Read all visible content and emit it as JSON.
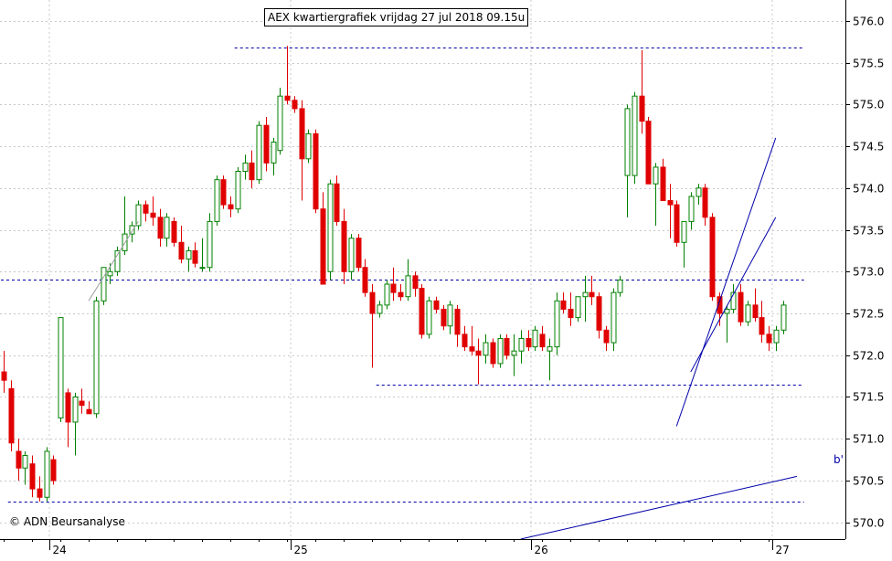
{
  "chart_data": {
    "type": "candlestick",
    "title": "AEX kwartiergrafiek vrijdag 27 jul 2018 09.15u",
    "copyright": "© ADN Beursanalyse",
    "y_axis": {
      "position": "right",
      "ylim": [
        569.8,
        576.25
      ],
      "ticks": [
        "570.0",
        "570.5",
        "571.0",
        "571.5",
        "572.0",
        "572.5",
        "573.0",
        "573.5",
        "574.0",
        "574.5",
        "575.0",
        "575.5",
        "576.0"
      ]
    },
    "x_axis": {
      "day_labels": [
        "24",
        "25",
        "26",
        "27"
      ],
      "bar_count": 111,
      "day_start_index": [
        7,
        41,
        75,
        109
      ]
    },
    "grid": true,
    "colors": {
      "up": "#008000",
      "down": "#e00000",
      "trend": "#0000aa",
      "grid": "#c8c8c8",
      "level": "#0000aa"
    },
    "horizontal_levels": [
      {
        "value": 575.68,
        "from_index": 33,
        "to_index": 113
      },
      {
        "value": 572.9,
        "from_index": 0,
        "to_index": 113
      },
      {
        "value": 571.65,
        "from_index": 53,
        "to_index": 113
      },
      {
        "value": 570.25,
        "from_index": 1,
        "to_index": 113
      }
    ],
    "trend_lines": [
      {
        "label": "b'",
        "from": [
          73,
          569.8
        ],
        "to": [
          112,
          570.55
        ]
      },
      {
        "label": "",
        "from": [
          95,
          571.15
        ],
        "to": [
          109,
          574.6
        ]
      },
      {
        "label": "",
        "from": [
          97,
          571.8
        ],
        "to": [
          109,
          573.65
        ]
      },
      {
        "label": "",
        "from": [
          12,
          572.65
        ],
        "to": [
          19,
          573.6
        ]
      }
    ],
    "ohlc": [
      [
        571.8,
        572.05,
        571.55,
        571.7
      ],
      [
        571.6,
        571.7,
        570.85,
        570.95
      ],
      [
        570.85,
        571.0,
        570.5,
        570.65
      ],
      [
        570.65,
        570.85,
        570.45,
        570.8
      ],
      [
        570.7,
        570.8,
        570.3,
        570.4
      ],
      [
        570.4,
        570.55,
        570.25,
        570.3
      ],
      [
        570.3,
        570.9,
        570.25,
        570.85
      ],
      [
        570.75,
        570.8,
        570.45,
        570.5
      ],
      [
        571.25,
        572.45,
        571.2,
        572.45
      ],
      [
        571.55,
        571.6,
        570.9,
        571.2
      ],
      [
        571.2,
        571.55,
        570.8,
        571.5
      ],
      [
        571.45,
        571.6,
        571.3,
        571.4
      ],
      [
        571.35,
        571.45,
        571.3,
        571.3
      ],
      [
        571.3,
        572.7,
        571.25,
        572.65
      ],
      [
        572.65,
        573.05,
        572.6,
        573.05
      ],
      [
        572.95,
        573.1,
        572.85,
        573.0
      ],
      [
        573.0,
        573.3,
        572.95,
        573.25
      ],
      [
        573.25,
        573.9,
        573.2,
        573.45
      ],
      [
        573.45,
        573.6,
        573.35,
        573.55
      ],
      [
        573.55,
        573.85,
        573.5,
        573.8
      ],
      [
        573.8,
        573.85,
        573.6,
        573.7
      ],
      [
        573.7,
        573.9,
        573.55,
        573.65
      ],
      [
        573.65,
        573.75,
        573.3,
        573.4
      ],
      [
        573.4,
        573.7,
        573.3,
        573.65
      ],
      [
        573.6,
        573.65,
        573.3,
        573.35
      ],
      [
        573.35,
        573.55,
        573.1,
        573.15
      ],
      [
        573.15,
        573.3,
        573.0,
        573.25
      ],
      [
        573.25,
        573.35,
        573.05,
        573.1
      ],
      [
        573.05,
        573.4,
        573.0,
        573.05
      ],
      [
        573.05,
        573.7,
        573.0,
        573.6
      ],
      [
        573.6,
        574.15,
        573.55,
        574.1
      ],
      [
        574.1,
        574.15,
        573.75,
        573.8
      ],
      [
        573.8,
        573.9,
        573.65,
        573.75
      ],
      [
        573.75,
        574.25,
        573.7,
        574.2
      ],
      [
        574.2,
        574.4,
        574.1,
        574.3
      ],
      [
        574.3,
        574.45,
        574.0,
        574.1
      ],
      [
        574.1,
        574.8,
        574.05,
        574.75
      ],
      [
        574.75,
        574.85,
        574.2,
        574.3
      ],
      [
        574.3,
        574.6,
        574.15,
        574.55
      ],
      [
        574.45,
        575.2,
        574.4,
        575.1
      ],
      [
        575.1,
        575.7,
        575.0,
        575.05
      ],
      [
        575.05,
        575.1,
        574.9,
        574.95
      ],
      [
        574.95,
        575.05,
        573.85,
        574.35
      ],
      [
        574.35,
        574.7,
        574.3,
        574.65
      ],
      [
        574.65,
        574.7,
        573.7,
        573.75
      ],
      [
        573.75,
        573.95,
        572.85,
        572.85
      ],
      [
        573.0,
        574.1,
        572.9,
        574.05
      ],
      [
        574.05,
        574.15,
        573.55,
        573.6
      ],
      [
        573.6,
        573.75,
        572.85,
        573.0
      ],
      [
        573.0,
        573.45,
        572.9,
        573.4
      ],
      [
        573.4,
        573.45,
        573.0,
        573.05
      ],
      [
        573.05,
        573.15,
        572.7,
        572.75
      ],
      [
        572.75,
        572.85,
        571.85,
        572.5
      ],
      [
        572.5,
        572.65,
        572.45,
        572.6
      ],
      [
        572.6,
        572.9,
        572.55,
        572.85
      ],
      [
        572.85,
        573.05,
        572.65,
        572.75
      ],
      [
        572.75,
        572.85,
        572.65,
        572.7
      ],
      [
        572.7,
        573.15,
        572.65,
        572.95
      ],
      [
        572.95,
        573.0,
        572.7,
        572.8
      ],
      [
        572.8,
        572.85,
        572.2,
        572.25
      ],
      [
        572.25,
        572.7,
        572.2,
        572.65
      ],
      [
        572.65,
        572.7,
        572.5,
        572.55
      ],
      [
        572.55,
        572.6,
        572.3,
        572.35
      ],
      [
        572.35,
        572.65,
        572.25,
        572.6
      ],
      [
        572.55,
        572.6,
        572.1,
        572.25
      ],
      [
        572.25,
        572.35,
        572.05,
        572.1
      ],
      [
        572.1,
        572.35,
        572.0,
        572.05
      ],
      [
        572.05,
        572.2,
        571.65,
        572.0
      ],
      [
        572.0,
        572.25,
        571.9,
        572.15
      ],
      [
        572.15,
        572.2,
        571.85,
        571.9
      ],
      [
        571.9,
        572.25,
        571.85,
        572.2
      ],
      [
        572.2,
        572.25,
        571.95,
        572.0
      ],
      [
        572.0,
        572.25,
        571.75,
        572.05
      ],
      [
        572.05,
        572.3,
        571.9,
        572.2
      ],
      [
        572.2,
        572.3,
        572.05,
        572.1
      ],
      [
        572.1,
        572.35,
        572.05,
        572.3
      ],
      [
        572.25,
        572.35,
        572.05,
        572.1
      ],
      [
        572.05,
        572.2,
        571.7,
        572.1
      ],
      [
        572.1,
        572.75,
        572.0,
        572.65
      ],
      [
        572.65,
        572.75,
        572.5,
        572.55
      ],
      [
        572.55,
        572.75,
        572.35,
        572.45
      ],
      [
        572.45,
        572.7,
        572.4,
        572.7
      ],
      [
        572.7,
        572.95,
        572.4,
        572.75
      ],
      [
        572.75,
        572.95,
        572.6,
        572.7
      ],
      [
        572.7,
        572.75,
        572.2,
        572.3
      ],
      [
        572.3,
        572.35,
        572.05,
        572.15
      ],
      [
        572.15,
        572.8,
        572.05,
        572.75
      ],
      [
        572.75,
        572.95,
        572.7,
        572.9
      ],
      [
        574.15,
        575.0,
        573.65,
        574.95
      ],
      [
        574.15,
        575.15,
        574.05,
        575.1
      ],
      [
        575.1,
        575.65,
        574.65,
        574.8
      ],
      [
        574.8,
        574.85,
        574.05,
        574.05
      ],
      [
        574.05,
        574.3,
        573.55,
        574.25
      ],
      [
        574.25,
        574.35,
        573.85,
        573.85
      ],
      [
        573.85,
        574.05,
        573.4,
        573.8
      ],
      [
        573.8,
        573.85,
        573.3,
        573.35
      ],
      [
        573.35,
        573.6,
        573.05,
        573.6
      ],
      [
        573.6,
        573.95,
        573.5,
        573.9
      ],
      [
        573.9,
        574.05,
        573.8,
        574.0
      ],
      [
        574.0,
        574.05,
        573.55,
        573.65
      ],
      [
        573.65,
        573.7,
        572.65,
        572.7
      ],
      [
        572.7,
        572.75,
        572.35,
        572.5
      ],
      [
        572.5,
        572.6,
        572.15,
        572.55
      ],
      [
        572.55,
        572.85,
        572.5,
        572.75
      ],
      [
        572.75,
        572.85,
        572.35,
        572.4
      ],
      [
        572.4,
        572.65,
        572.35,
        572.6
      ],
      [
        572.6,
        572.8,
        572.4,
        572.45
      ],
      [
        572.45,
        572.65,
        572.15,
        572.25
      ],
      [
        572.25,
        572.35,
        572.05,
        572.15
      ],
      [
        572.15,
        572.35,
        572.05,
        572.3
      ],
      [
        572.3,
        572.65,
        572.25,
        572.6
      ]
    ]
  }
}
